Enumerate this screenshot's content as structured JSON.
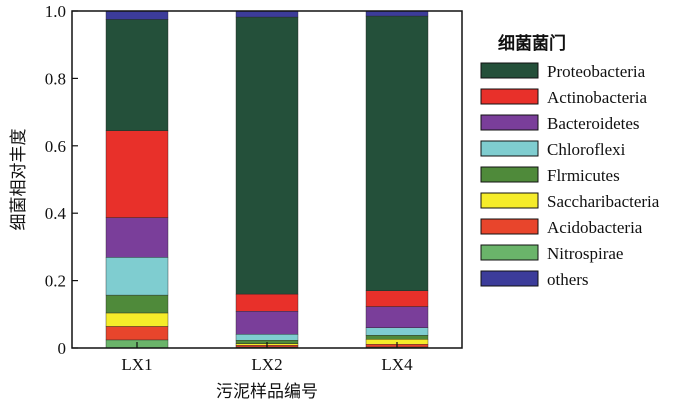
{
  "chart_data": {
    "type": "bar",
    "stacked": true,
    "title": "",
    "xlabel": "污泥样品编号",
    "ylabel": "细菌相对丰度",
    "ylim": [
      0,
      1.0
    ],
    "yticks": [
      "0",
      "0.2",
      "0.4",
      "0.6",
      "0.8",
      "1.0"
    ],
    "ytick_values": [
      0,
      0.2,
      0.4,
      0.6,
      0.8,
      1.0
    ],
    "categories": [
      "LX1",
      "LX2",
      "LX4"
    ],
    "legend_title": "细菌菌门",
    "legend_position": "right",
    "series": [
      {
        "name": "Nitrospirae",
        "color": "#6ab46a",
        "values": [
          0.024,
          0.003,
          0.003
        ]
      },
      {
        "name": "Acidobacteria",
        "color": "#e8452c",
        "values": [
          0.04,
          0.005,
          0.008
        ]
      },
      {
        "name": "Saccharibacteria",
        "color": "#f5ec2a",
        "values": [
          0.04,
          0.005,
          0.015
        ]
      },
      {
        "name": "Flrmicutes",
        "color": "#4f8a3a",
        "values": [
          0.053,
          0.01,
          0.012
        ]
      },
      {
        "name": "Chloroflexi",
        "color": "#7fcdd0",
        "values": [
          0.112,
          0.018,
          0.022
        ]
      },
      {
        "name": "Bacteroidetes",
        "color": "#7a3e9a",
        "values": [
          0.118,
          0.068,
          0.063
        ]
      },
      {
        "name": "Actinobacteria",
        "color": "#e8302a",
        "values": [
          0.258,
          0.051,
          0.047
        ]
      },
      {
        "name": "Proteobacteria",
        "color": "#24503a",
        "values": [
          0.33,
          0.822,
          0.815
        ]
      },
      {
        "name": "others",
        "color": "#3c3c9a",
        "values": [
          0.025,
          0.018,
          0.015
        ]
      }
    ],
    "legend_order": [
      "Proteobacteria",
      "Actinobacteria",
      "Bacteroidetes",
      "Chloroflexi",
      "Flrmicutes",
      "Saccharibacteria",
      "Acidobacteria",
      "Nitrospirae",
      "others"
    ]
  }
}
